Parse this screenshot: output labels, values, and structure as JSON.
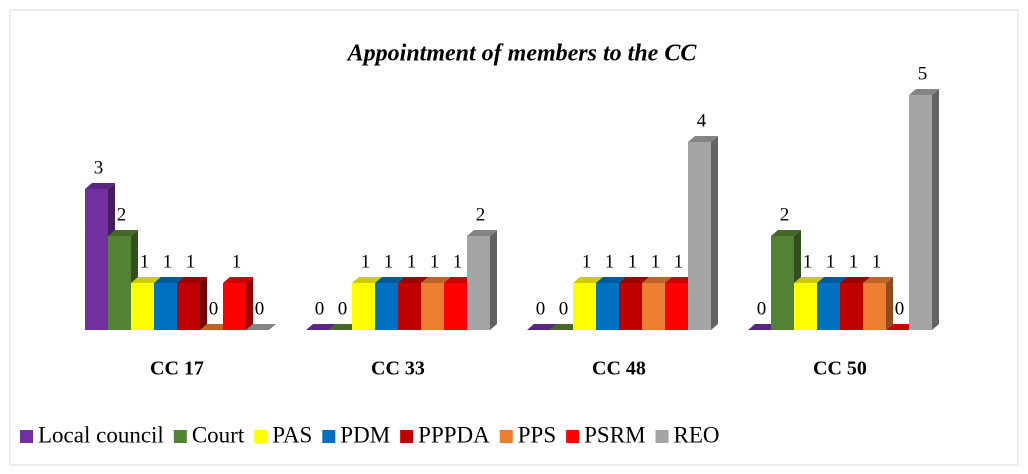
{
  "chart_data": {
    "type": "bar3d",
    "title": "Appointment of members to the CC",
    "categories": [
      "CC 17",
      "CC 33",
      "CC 48",
      "CC 50"
    ],
    "series": [
      {
        "name": "Local council",
        "color": "#7030a0",
        "values": [
          3,
          0,
          0,
          0
        ]
      },
      {
        "name": "Court",
        "color": "#548235",
        "values": [
          2,
          0,
          0,
          2
        ]
      },
      {
        "name": "PAS",
        "color": "#ffff00",
        "values": [
          1,
          1,
          1,
          1
        ]
      },
      {
        "name": "PDM",
        "color": "#0070c0",
        "values": [
          1,
          1,
          1,
          1
        ]
      },
      {
        "name": "PPPDA",
        "color": "#c00000",
        "values": [
          1,
          1,
          1,
          1
        ]
      },
      {
        "name": "PPS",
        "color": "#ed7d31",
        "values": [
          0,
          1,
          1,
          1
        ]
      },
      {
        "name": "PSRM",
        "color": "#ff0000",
        "values": [
          1,
          1,
          1,
          0
        ]
      },
      {
        "name": "REO",
        "color": "#a5a5a5",
        "values": [
          0,
          2,
          4,
          5
        ]
      }
    ],
    "legend": "bottom"
  }
}
